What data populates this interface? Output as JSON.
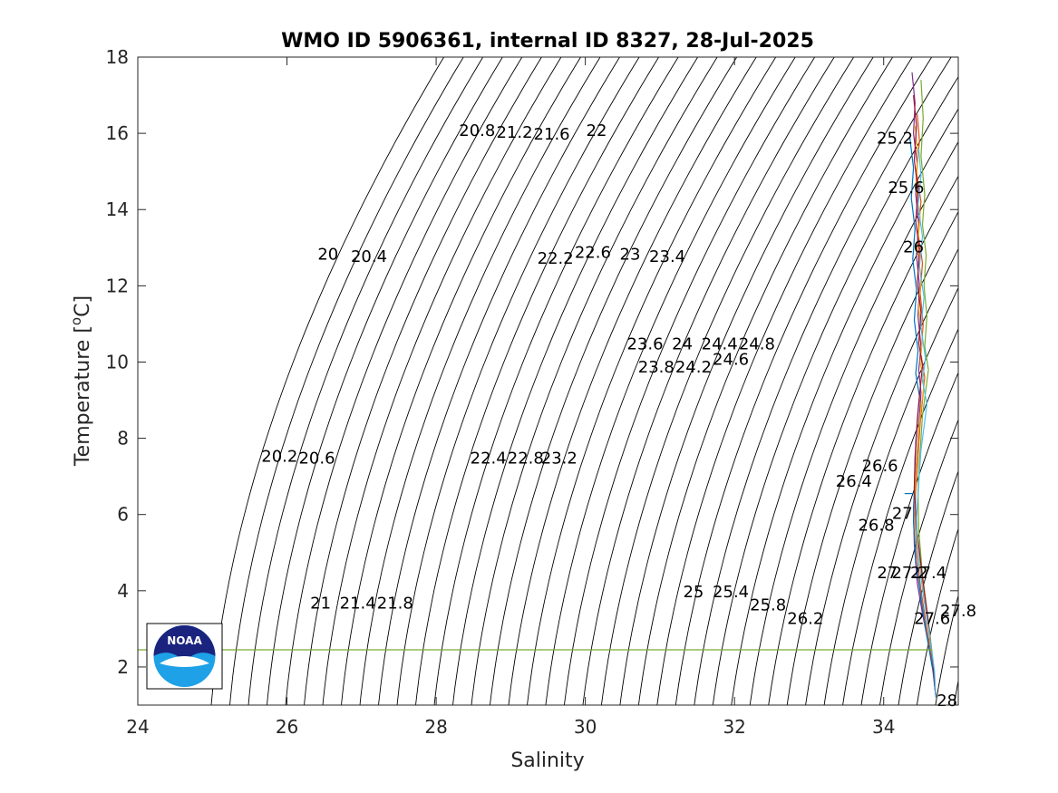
{
  "chart_data": {
    "type": "line",
    "title": "WMO ID 5906361, internal ID 8327, 28-Jul-2025",
    "xlabel": "Salinity",
    "ylabel_parts": [
      "Temperature [",
      "o",
      "C]"
    ],
    "xlim": [
      24,
      35
    ],
    "ylim": [
      1,
      18
    ],
    "xticks": [
      24,
      26,
      28,
      30,
      32,
      34
    ],
    "yticks": [
      2,
      4,
      6,
      8,
      10,
      12,
      14,
      16,
      18
    ],
    "grid": false,
    "legend": "none",
    "contour_levels": [
      20,
      20.2,
      20.4,
      20.6,
      20.8,
      21,
      21.2,
      21.4,
      21.6,
      21.8,
      22,
      22.2,
      22.4,
      22.6,
      22.8,
      23,
      23.2,
      23.4,
      23.6,
      23.8,
      24,
      24.2,
      24.4,
      24.6,
      24.8,
      25,
      25.2,
      25.4,
      25.6,
      25.8,
      26,
      26.2,
      26.4,
      26.6,
      26.8,
      27,
      27.2,
      27.4,
      27.6,
      27.8,
      28
    ],
    "contour_labels": [
      {
        "text": "20",
        "s": 26.55,
        "t": 12.8
      },
      {
        "text": "20.4",
        "s": 27.1,
        "t": 12.75
      },
      {
        "text": "20.2",
        "s": 25.9,
        "t": 7.5
      },
      {
        "text": "20.6",
        "s": 26.4,
        "t": 7.45
      },
      {
        "text": "20.8",
        "s": 28.55,
        "t": 16.05
      },
      {
        "text": "21.2",
        "s": 29.05,
        "t": 16.0
      },
      {
        "text": "21.6",
        "s": 29.55,
        "t": 15.95
      },
      {
        "text": "22",
        "s": 30.15,
        "t": 16.05
      },
      {
        "text": "21",
        "s": 26.45,
        "t": 3.65
      },
      {
        "text": "21.4",
        "s": 26.95,
        "t": 3.65
      },
      {
        "text": "21.8",
        "s": 27.45,
        "t": 3.65
      },
      {
        "text": "22.2",
        "s": 29.6,
        "t": 12.7
      },
      {
        "text": "22.6",
        "s": 30.1,
        "t": 12.85
      },
      {
        "text": "23",
        "s": 30.6,
        "t": 12.8
      },
      {
        "text": "23.4",
        "s": 31.1,
        "t": 12.75
      },
      {
        "text": "22.4",
        "s": 28.7,
        "t": 7.45
      },
      {
        "text": "22.8",
        "s": 29.2,
        "t": 7.45
      },
      {
        "text": "23.2",
        "s": 29.65,
        "t": 7.45
      },
      {
        "text": "23.6",
        "s": 30.8,
        "t": 10.45
      },
      {
        "text": "24",
        "s": 31.3,
        "t": 10.45
      },
      {
        "text": "24.4",
        "s": 31.8,
        "t": 10.45
      },
      {
        "text": "24.8",
        "s": 32.3,
        "t": 10.45
      },
      {
        "text": "23.8",
        "s": 30.95,
        "t": 9.85
      },
      {
        "text": "24.2",
        "s": 31.45,
        "t": 9.85
      },
      {
        "text": "24.6",
        "s": 31.95,
        "t": 10.05
      },
      {
        "text": "25",
        "s": 31.45,
        "t": 3.95
      },
      {
        "text": "25.4",
        "s": 31.95,
        "t": 3.95
      },
      {
        "text": "25.8",
        "s": 32.45,
        "t": 3.6
      },
      {
        "text": "26.2",
        "s": 32.95,
        "t": 3.25
      },
      {
        "text": "25.2",
        "s": 34.15,
        "t": 15.85
      },
      {
        "text": "25.6",
        "s": 34.3,
        "t": 14.55
      },
      {
        "text": "26",
        "s": 34.4,
        "t": 13.0
      },
      {
        "text": "26.6",
        "s": 33.95,
        "t": 7.25
      },
      {
        "text": "26.4",
        "s": 33.6,
        "t": 6.85
      },
      {
        "text": "27",
        "s": 34.25,
        "t": 6.0
      },
      {
        "text": "26.8",
        "s": 33.9,
        "t": 5.7
      },
      {
        "text": "27",
        "s": 34.05,
        "t": 4.45
      },
      {
        "text": "27.2",
        "s": 34.35,
        "t": 4.45
      },
      {
        "text": "27.4",
        "s": 34.6,
        "t": 4.45
      },
      {
        "text": "27.8",
        "s": 35.0,
        "t": 3.45
      },
      {
        "text": "27.6",
        "s": 34.65,
        "t": 3.25
      },
      {
        "text": "28",
        "s": 34.85,
        "t": 1.1
      }
    ],
    "series": [
      {
        "values_s": [
          34.38,
          34.42,
          34.4,
          34.45,
          34.43,
          34.47,
          34.44,
          34.48,
          34.46,
          34.5,
          34.47,
          34.5,
          34.48,
          34.46,
          34.44,
          34.42,
          34.4,
          34.41,
          34.45,
          34.52,
          34.6,
          34.67,
          34.7
        ],
        "values_t": [
          17.6,
          16.8,
          16.0,
          15.2,
          14.4,
          13.6,
          12.8,
          12.0,
          11.2,
          10.4,
          9.8,
          9.2,
          8.6,
          8.0,
          7.4,
          6.8,
          6.2,
          5.2,
          4.2,
          3.4,
          2.6,
          1.8,
          1.2
        ],
        "color": "#7e2f8e"
      },
      {
        "values_s": [
          34.45,
          34.48,
          34.44,
          34.5,
          34.46,
          34.52,
          34.49,
          34.53,
          34.5,
          34.55,
          34.52,
          34.49,
          34.47,
          34.45,
          34.43,
          34.42,
          34.44,
          34.5,
          34.58,
          34.66,
          34.7
        ],
        "values_t": [
          16.5,
          15.8,
          15.0,
          14.2,
          13.4,
          12.6,
          11.8,
          11.0,
          10.2,
          9.6,
          9.0,
          8.4,
          7.8,
          7.2,
          6.6,
          6.0,
          5.0,
          4.0,
          3.0,
          2.0,
          1.2
        ],
        "color": "#d95319"
      },
      {
        "values_s": [
          34.35,
          34.4,
          34.37,
          34.42,
          34.39,
          34.44,
          34.41,
          34.46,
          34.43,
          34.48,
          34.45,
          34.43,
          34.42,
          34.41,
          34.4,
          34.43,
          34.5,
          34.58,
          34.66,
          34.7
        ],
        "values_t": [
          15.9,
          15.1,
          14.3,
          13.5,
          12.7,
          11.9,
          11.1,
          10.3,
          9.7,
          9.1,
          8.5,
          7.9,
          7.3,
          6.7,
          5.8,
          4.8,
          3.8,
          2.8,
          1.9,
          1.2
        ],
        "color": "#0072bd"
      },
      {
        "values_s": [
          34.5,
          34.53,
          34.5,
          34.55,
          34.52,
          34.57,
          34.54,
          34.58,
          34.55,
          34.6,
          34.56,
          34.52,
          34.5,
          34.48,
          34.46,
          34.47,
          34.52,
          34.6,
          34.67,
          34.7
        ],
        "values_t": [
          17.4,
          16.4,
          15.4,
          14.4,
          13.6,
          12.8,
          12.0,
          11.2,
          10.4,
          9.8,
          9.2,
          8.6,
          8.0,
          7.4,
          6.6,
          5.6,
          4.4,
          3.2,
          2.0,
          1.2
        ],
        "color": "#77ac30"
      },
      {
        "values_s": [
          34.42,
          34.46,
          34.43,
          34.49,
          34.45,
          34.5,
          34.47,
          34.52,
          34.49,
          34.54,
          34.5,
          34.47,
          34.45,
          34.43,
          34.42,
          34.45,
          34.52,
          34.6,
          34.67,
          34.7
        ],
        "values_t": [
          16.2,
          15.4,
          14.6,
          13.8,
          13.0,
          12.2,
          11.4,
          10.6,
          10.0,
          9.4,
          8.8,
          8.2,
          7.6,
          7.0,
          6.2,
          5.2,
          4.2,
          3.0,
          2.0,
          1.2
        ],
        "color": "#edb120"
      },
      {
        "values_s": [
          34.4,
          34.44,
          34.41,
          34.46,
          34.43,
          34.48,
          34.45,
          34.5,
          34.47,
          34.52,
          34.49,
          34.46,
          34.44,
          34.42,
          34.41,
          34.44,
          34.51,
          34.59,
          34.66,
          34.7
        ],
        "values_t": [
          17.0,
          16.2,
          15.3,
          14.5,
          13.7,
          12.9,
          12.1,
          11.3,
          10.5,
          9.9,
          9.3,
          8.7,
          8.1,
          7.5,
          6.7,
          5.7,
          4.5,
          3.3,
          2.1,
          1.2
        ],
        "color": "#a2142f"
      },
      {
        "values_s": [
          34.47,
          34.5,
          34.46,
          34.52,
          34.48,
          34.54,
          34.5,
          34.56,
          34.52,
          34.58,
          34.54,
          34.5,
          34.48,
          34.46,
          34.44,
          34.46,
          34.53,
          34.61,
          34.68,
          34.7
        ],
        "values_t": [
          15.6,
          14.9,
          14.1,
          13.3,
          12.5,
          11.7,
          10.9,
          10.1,
          9.5,
          8.9,
          8.3,
          7.7,
          7.1,
          6.5,
          5.9,
          5.0,
          3.9,
          2.9,
          1.9,
          1.2
        ],
        "color": "#4dbeee"
      },
      {
        "values_s": [
          34.28,
          34.38,
          34.4
        ],
        "values_t": [
          6.55,
          6.55,
          6.55
        ],
        "color": "#0072bd"
      }
    ],
    "reference_line": {
      "s": [
        24.0,
        34.65
      ],
      "t": [
        2.45,
        2.45
      ],
      "color": "#77ac30"
    }
  },
  "logo": {
    "text": "NOAA"
  }
}
